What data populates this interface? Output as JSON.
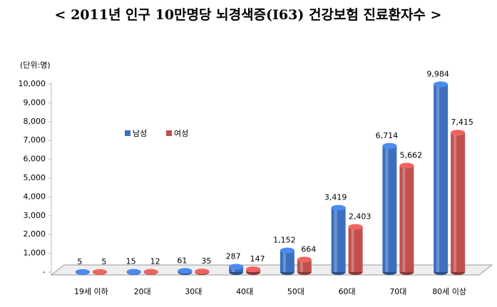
{
  "chart_data": {
    "type": "bar",
    "title": "< 2011년 인구 10만명당  뇌경색증(I63) 건강보험 진료환자수 >",
    "unit_label": "(단위:명)",
    "categories": [
      "19세 이하",
      "20대",
      "30대",
      "40대",
      "50대",
      "60대",
      "70대",
      "80세 이상"
    ],
    "series": [
      {
        "name": "남성",
        "color": "#3d6fbf",
        "values": [
          5,
          15,
          61,
          287,
          1152,
          3419,
          6714,
          9984
        ],
        "value_labels": [
          "5",
          "15",
          "61",
          "287",
          "1,152",
          "3,419",
          "6,714",
          "9,984"
        ]
      },
      {
        "name": "여성",
        "color": "#c0504d",
        "values": [
          5,
          12,
          35,
          147,
          664,
          2403,
          5662,
          7415
        ],
        "value_labels": [
          "5",
          "12",
          "35",
          "147",
          "664",
          "2,403",
          "5,662",
          "7,415"
        ]
      }
    ],
    "ylim": [
      0,
      10000
    ],
    "yticks": [
      {
        "value": 0,
        "label": "-"
      },
      {
        "value": 1000,
        "label": "1,000"
      },
      {
        "value": 2000,
        "label": "2,000"
      },
      {
        "value": 3000,
        "label": "3,000"
      },
      {
        "value": 4000,
        "label": "4,000"
      },
      {
        "value": 5000,
        "label": "5,000"
      },
      {
        "value": 6000,
        "label": "6,000"
      },
      {
        "value": 7000,
        "label": "7,000"
      },
      {
        "value": 8000,
        "label": "8,000"
      },
      {
        "value": 9000,
        "label": "9,000"
      },
      {
        "value": 10000,
        "label": "10,000"
      }
    ],
    "legend": "upper-left"
  }
}
